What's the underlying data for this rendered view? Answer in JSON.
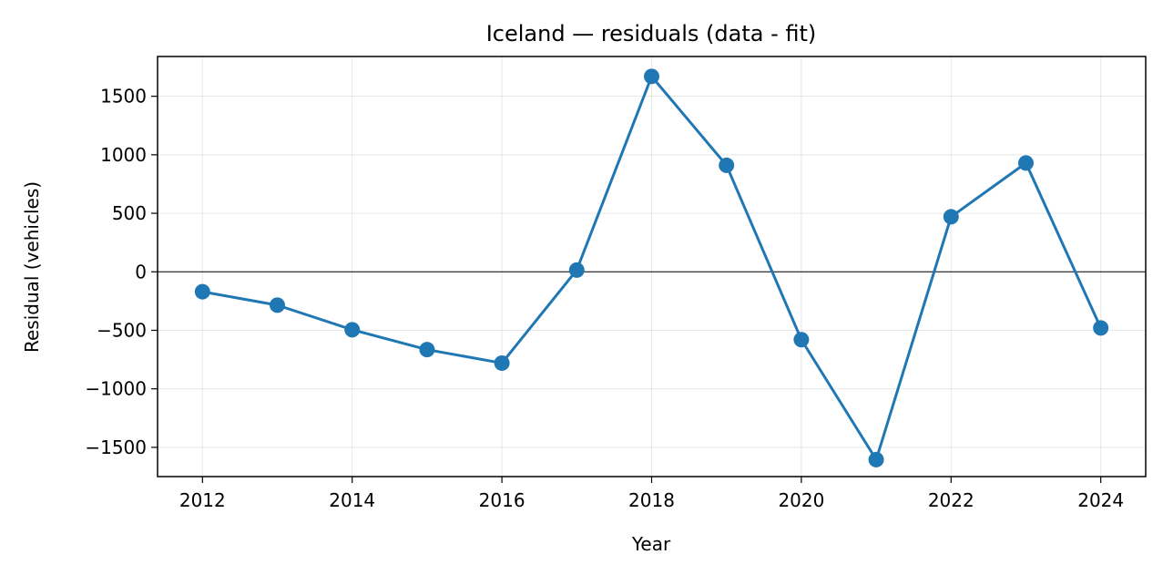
{
  "chart_data": {
    "type": "line",
    "title": "Iceland — residuals (data - fit)",
    "xlabel": "Year",
    "ylabel": "Residual (vehicles)",
    "xlim": [
      2011.4,
      2024.6
    ],
    "ylim": [
      -1750,
      1840
    ],
    "xticks": [
      2012,
      2014,
      2016,
      2018,
      2020,
      2022,
      2024
    ],
    "yticks": [
      -1500,
      -1000,
      -500,
      0,
      500,
      1000,
      1500
    ],
    "ytick_labels": [
      "−1500",
      "−1000",
      "−500",
      "0",
      "500",
      "1000",
      "1500"
    ],
    "zero_line": 0,
    "grid": true,
    "series": [
      {
        "color": "#1f77b4",
        "x": [
          2012,
          2013,
          2014,
          2015,
          2016,
          2017,
          2018,
          2019,
          2020,
          2021,
          2022,
          2023,
          2024
        ],
        "y": [
          -170,
          -285,
          -495,
          -665,
          -780,
          15,
          1670,
          910,
          -580,
          -1605,
          470,
          930,
          -480
        ]
      }
    ]
  }
}
